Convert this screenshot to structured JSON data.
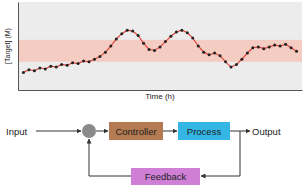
{
  "chart_data": {
    "type": "line",
    "x_label": "Time (h)",
    "y_label": "[Target] (M)",
    "x": [
      0,
      1,
      2,
      3,
      4,
      5,
      6,
      7,
      8,
      9,
      10,
      11,
      12,
      13,
      14,
      15,
      16,
      17,
      18,
      19,
      20,
      21,
      22,
      23,
      24,
      25,
      26,
      27,
      28,
      29,
      30,
      31,
      32,
      33,
      34,
      35,
      36,
      37,
      38,
      39,
      40,
      41,
      42,
      43,
      44,
      45,
      46,
      47,
      48,
      49,
      50
    ],
    "values": [
      2.0,
      2.3,
      2.2,
      2.5,
      2.4,
      2.7,
      2.6,
      2.9,
      2.8,
      3.1,
      3.0,
      3.3,
      3.2,
      3.5,
      3.8,
      4.3,
      5.0,
      5.8,
      6.4,
      6.8,
      6.7,
      6.2,
      5.3,
      4.6,
      4.5,
      4.9,
      5.5,
      6.1,
      6.6,
      6.8,
      6.5,
      5.9,
      5.0,
      4.3,
      4.0,
      4.2,
      3.9,
      3.2,
      2.6,
      2.9,
      3.5,
      4.2,
      4.8,
      4.9,
      4.7,
      4.9,
      5.1,
      5.0,
      5.2,
      4.8,
      4.4
    ],
    "color": "#e0463c",
    "marker": "circle",
    "target_range": [
      3.2,
      5.7
    ],
    "xlim": [
      -1,
      51
    ],
    "ylim": [
      0,
      10
    ],
    "tick_labels": false
  },
  "diagram": {
    "input": "Input",
    "controller": "Controller",
    "process": "Process",
    "output": "Output",
    "feedback": "Feedback"
  }
}
